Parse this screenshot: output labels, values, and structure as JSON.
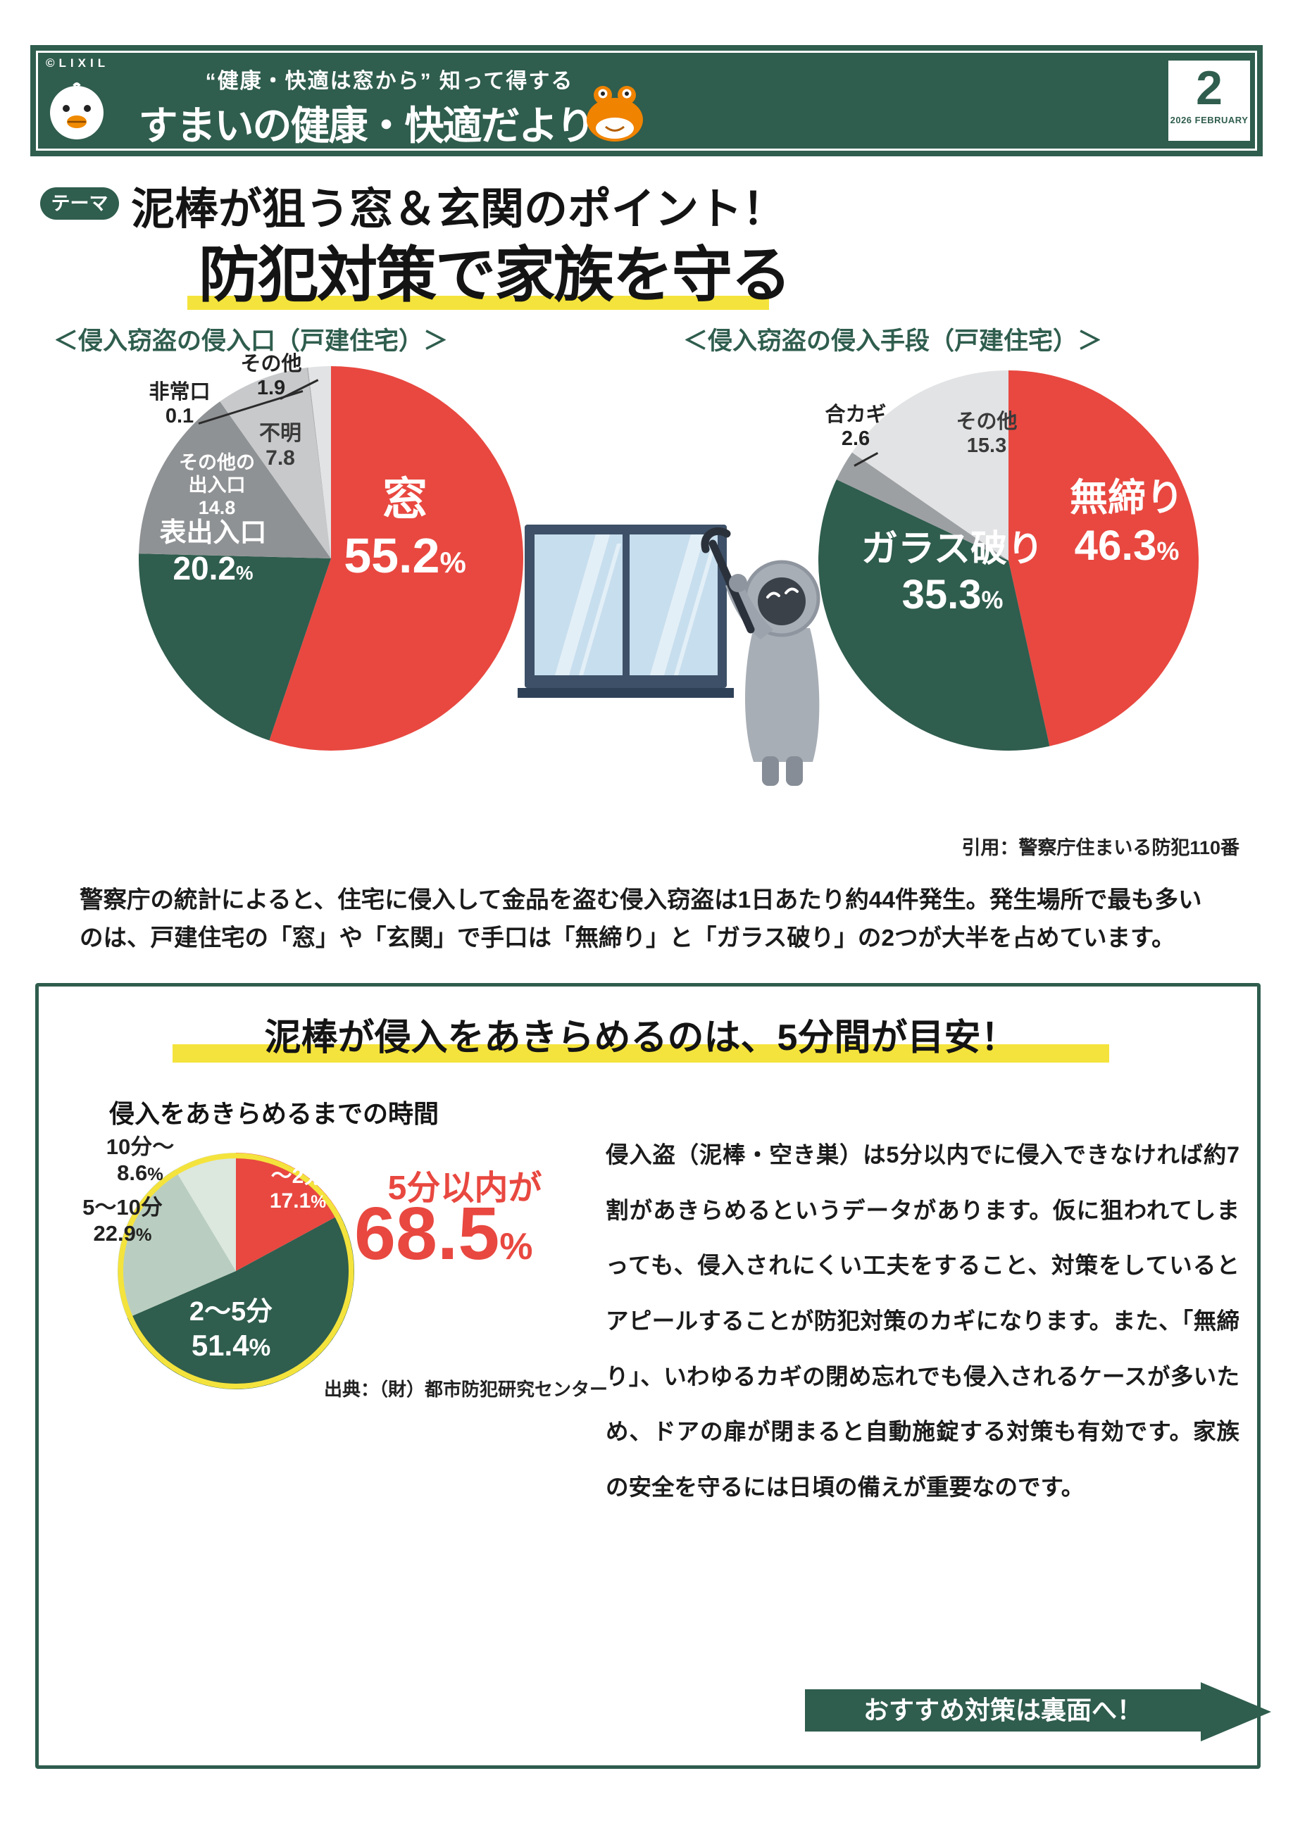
{
  "units": {
    "percent": "%"
  },
  "colors": {
    "brand_green": "#2F5D4E",
    "accent_red": "#E84840",
    "highlight_yellow": "#F4E33C",
    "gray_mid": "#8F9294",
    "gray_light": "#C7C9CB",
    "gray_lighter": "#E2E3E4",
    "sage": "#B9CEC0",
    "sage_light": "#DCE7DE"
  },
  "header": {
    "copyright": "©LIXIL",
    "tagline": "“健康・快適は窓から” 知って得する",
    "title": "すまいの健康・快適だより",
    "issue_number": "2",
    "issue_date": "2026 FEBRUARY"
  },
  "theme": {
    "badge": "テーマ",
    "title_line1": "泥棒が狙う窓＆玄関のポイント！",
    "title_line2": "防犯対策で家族を守る"
  },
  "section_titles": {
    "left_pie": "＜侵入窃盗の侵入口（戸建住宅）＞",
    "right_pie": "＜侵入窃盗の侵入手段（戸建住宅）＞"
  },
  "chart_data": [
    {
      "type": "pie",
      "title": "侵入窃盗の侵入口（戸建住宅）",
      "unit": "%",
      "start_angle": "top",
      "direction": "clockwise",
      "slices": [
        {
          "label": "窓",
          "value": 55.2,
          "color": "#E84840"
        },
        {
          "label": "表出入口",
          "value": 20.2,
          "color": "#2F5D4E"
        },
        {
          "label": "その他の出入口",
          "value": 14.8,
          "color": "#8F9294"
        },
        {
          "label": "不明",
          "value": 7.8,
          "color": "#C7C9CB"
        },
        {
          "label": "非常口",
          "value": 0.1,
          "color": "#ADB0B2"
        },
        {
          "label": "その他",
          "value": 1.9,
          "color": "#E2E3E4"
        }
      ]
    },
    {
      "type": "pie",
      "title": "侵入窃盗の侵入手段（戸建住宅）",
      "unit": "%",
      "start_angle": "top",
      "direction": "clockwise",
      "slices": [
        {
          "label": "無締り",
          "value": 46.3,
          "color": "#E84840"
        },
        {
          "label": "ガラス破り",
          "value": 35.3,
          "color": "#2F5D4E"
        },
        {
          "label": "合カギ",
          "value": 2.6,
          "color": "#9DA0A3"
        },
        {
          "label": "その他",
          "value": 15.3,
          "color": "#E2E3E4"
        }
      ]
    },
    {
      "type": "pie",
      "title": "侵入をあきらめるまでの時間",
      "unit": "%",
      "start_angle": "top",
      "direction": "clockwise",
      "slices": [
        {
          "label": "～2分",
          "value": 17.1,
          "color": "#E84840"
        },
        {
          "label": "2～5分",
          "value": 51.4,
          "color": "#2F5D4E"
        },
        {
          "label": "5～10分",
          "value": 22.9,
          "color": "#B9CEC0"
        },
        {
          "label": "10分～",
          "value": 8.6,
          "color": "#DCE7DE"
        }
      ]
    }
  ],
  "citation": "引用：警察庁住まいる防犯110番",
  "lead_text": "警察庁の統計によると、住宅に侵入して金品を盗む侵入窃盗は1日あたり約44件発生。発生場所で最も多いのは、戸建住宅の「窓」や「玄関」で手口は「無締り」と「ガラス破り」の2つが大半を占めています。",
  "panel": {
    "title": "泥棒が侵入をあきらめるのは、5分間が目安！",
    "pie_title": "侵入をあきらめるまでの時間",
    "stat_label": "5分以内が",
    "stat_value": "68.5",
    "source": "出典：（財）都市防犯研究センター",
    "body": "侵入盗（泥棒・空き巣）は5分以内でに侵入できなければ約7割があきらめるというデータがあります。仮に狙われてしまっても、侵入されにくい工夫をすること、対策をしているとアピールすることが防犯対策のカギになります。また、「無締り」、いわゆるカギの閉め忘れでも侵入されるケースが多いため、ドアの扉が閉まると自動施錠する対策も有効です。家族の安全を守るには日頃の備えが重要なのです。",
    "cta": "おすすめ対策は裏面へ！"
  }
}
